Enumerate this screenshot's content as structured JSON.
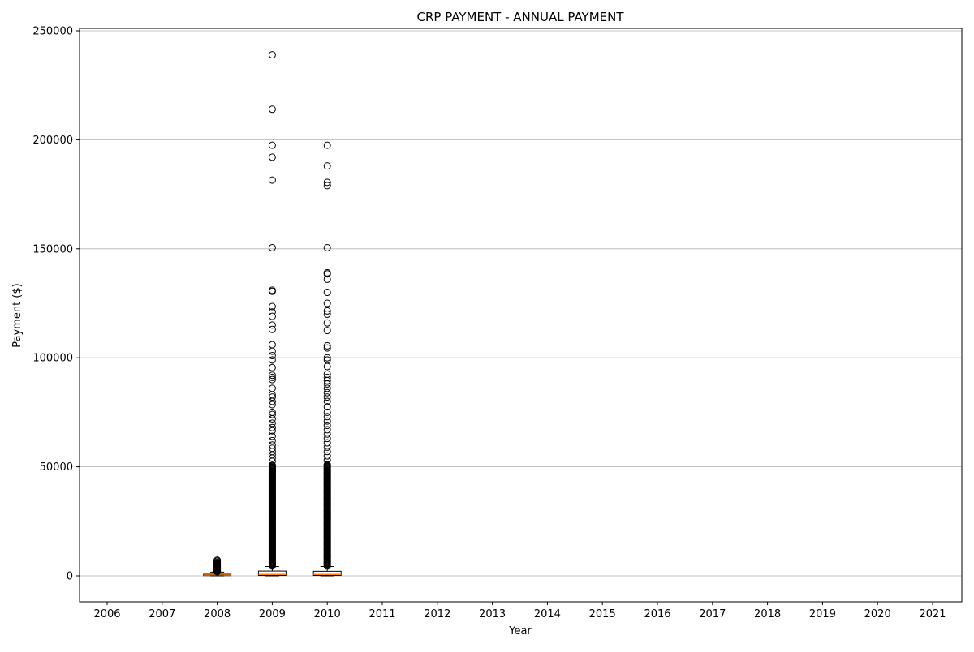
{
  "chart_data": {
    "type": "box",
    "title": "CRP PAYMENT - ANNUAL PAYMENT",
    "xlabel": "Year",
    "ylabel": "Payment ($)",
    "ylim": [
      -12000,
      251000
    ],
    "yticks": [
      0,
      50000,
      100000,
      150000,
      200000,
      250000
    ],
    "grid": "y-major",
    "categories": [
      "2006",
      "2007",
      "2008",
      "2009",
      "2010",
      "2011",
      "2012",
      "2013",
      "2014",
      "2015",
      "2016",
      "2017",
      "2018",
      "2019",
      "2020",
      "2021"
    ],
    "boxes": [
      {
        "category": "2008",
        "q1": 100,
        "median": 350,
        "q3": 750,
        "whisker_low": 0,
        "whisker_high": 1700,
        "outliers": [
          1900,
          2100,
          2300,
          2500,
          2700,
          2900,
          3100,
          3300,
          3500,
          3700,
          3900,
          4100,
          4300,
          4500,
          4700,
          4900,
          5100,
          5300,
          5600,
          5900,
          6300,
          6800,
          7200
        ]
      },
      {
        "category": "2009",
        "q1": 200,
        "median": 650,
        "q3": 2200,
        "whisker_low": 0,
        "whisker_high": 4300,
        "outliers": [
          239000,
          214000,
          197500,
          192000,
          181500,
          150500,
          131000,
          130500,
          123500,
          121000,
          119000,
          115000,
          113000,
          106000,
          103000,
          101000,
          99000,
          95500,
          92000,
          91000,
          90000,
          86000,
          83000,
          82000,
          80000,
          78500,
          75000,
          74000,
          72000,
          70000,
          68000,
          66500,
          64000,
          62000,
          60000,
          58500,
          57000,
          55500,
          54000,
          52500
        ]
      },
      {
        "category": "2010",
        "q1": 200,
        "median": 650,
        "q3": 2100,
        "whisker_low": 0,
        "whisker_high": 4300,
        "outliers": [
          197500,
          188000,
          180500,
          179000,
          150500,
          139000,
          138500,
          136000,
          130000,
          125000,
          121500,
          120000,
          116000,
          112500,
          105500,
          104500,
          100000,
          99000,
          96000,
          92500,
          91000,
          89500,
          88000,
          86000,
          84000,
          82000,
          80000,
          77500,
          75000,
          73000,
          71000,
          69000,
          67000,
          65000,
          63000,
          61000,
          59000,
          57000,
          55000,
          53000,
          51000
        ]
      }
    ],
    "dense_outlier_band": {
      "low": 4500,
      "high": 51000,
      "step": 350
    },
    "colors": {
      "median": "#ff7f0e",
      "box": "#000000",
      "grid": "#b0b0b0"
    }
  }
}
